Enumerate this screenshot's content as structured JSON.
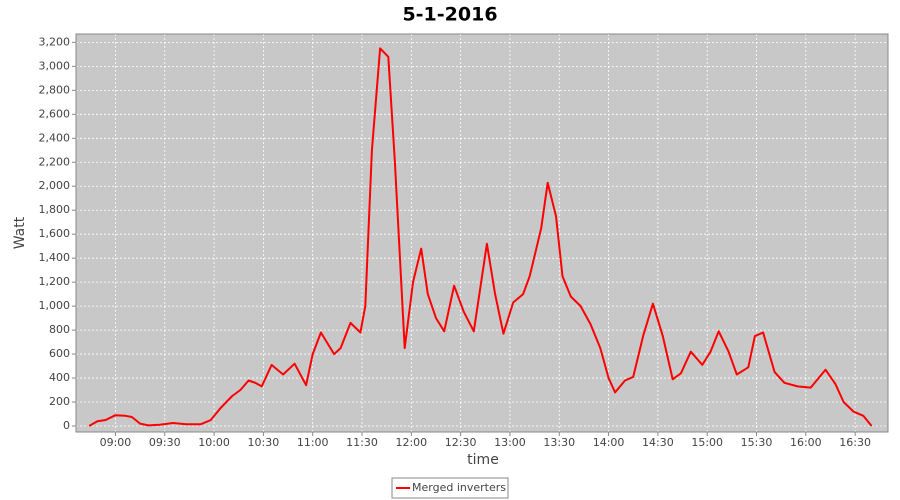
{
  "chart_data": {
    "type": "line",
    "title": "5-1-2016",
    "xlabel": "time",
    "ylabel": "Watt",
    "x": [
      "08:44",
      "08:49",
      "08:54",
      "09:00",
      "09:06",
      "09:10",
      "09:15",
      "09:20",
      "09:27",
      "09:35",
      "09:43",
      "09:52",
      "09:58",
      "10:04",
      "10:11",
      "10:16",
      "10:21",
      "10:25",
      "10:29",
      "10:35",
      "10:42",
      "10:49",
      "10:56",
      "11:00",
      "11:05",
      "11:13",
      "11:17",
      "11:23",
      "11:29",
      "11:32",
      "11:36",
      "11:41",
      "11:46",
      "11:50",
      "11:56",
      "12:01",
      "12:06",
      "12:10",
      "12:15",
      "12:20",
      "12:26",
      "12:32",
      "12:38",
      "12:46",
      "12:51",
      "12:56",
      "13:02",
      "13:08",
      "13:12",
      "13:19",
      "13:23",
      "13:28",
      "13:32",
      "13:37",
      "13:43",
      "13:49",
      "13:55",
      "14:00",
      "14:04",
      "14:10",
      "14:15",
      "14:21",
      "14:27",
      "14:33",
      "14:39",
      "14:44",
      "14:50",
      "14:57",
      "15:02",
      "15:07",
      "15:13",
      "15:18",
      "15:25",
      "15:29",
      "15:34",
      "15:41",
      "15:47",
      "15:55",
      "16:03",
      "16:12",
      "16:18",
      "16:23",
      "16:29",
      "16:35",
      "16:40"
    ],
    "series": [
      {
        "name": "Merged inverters",
        "color": "#ff0000",
        "values": [
          0,
          40,
          50,
          90,
          85,
          75,
          20,
          5,
          10,
          25,
          15,
          15,
          50,
          150,
          250,
          300,
          380,
          360,
          330,
          510,
          430,
          520,
          340,
          600,
          780,
          600,
          650,
          860,
          780,
          1000,
          2300,
          3150,
          3080,
          2200,
          650,
          1200,
          1480,
          1100,
          900,
          790,
          1170,
          950,
          790,
          1520,
          1100,
          770,
          1030,
          1100,
          1250,
          1650,
          2030,
          1750,
          1250,
          1080,
          1000,
          850,
          650,
          400,
          280,
          380,
          410,
          750,
          1020,
          750,
          390,
          440,
          620,
          510,
          620,
          790,
          620,
          430,
          490,
          750,
          780,
          450,
          360,
          330,
          320,
          470,
          350,
          200,
          120,
          85,
          0
        ]
      }
    ],
    "xlim": [
      "08:36",
      "16:50"
    ],
    "xticks": [
      "09:00",
      "09:30",
      "10:00",
      "10:30",
      "11:00",
      "11:30",
      "12:00",
      "12:30",
      "13:00",
      "13:30",
      "14:00",
      "14:30",
      "15:00",
      "15:30",
      "16:00",
      "16:30"
    ],
    "ylim": [
      -50,
      3270
    ],
    "yticks": [
      0,
      200,
      400,
      600,
      800,
      {
        "value": 1000,
        "label": "1,000"
      },
      {
        "value": 1200,
        "label": "1,200"
      },
      {
        "value": 1400,
        "label": "1,400"
      },
      {
        "value": 1600,
        "label": "1,600"
      },
      {
        "value": 1800,
        "label": "1,800"
      },
      {
        "value": 2000,
        "label": "2,000"
      },
      {
        "value": 2200,
        "label": "2,200"
      },
      {
        "value": 2400,
        "label": "2,400"
      },
      {
        "value": 2600,
        "label": "2,600"
      },
      {
        "value": 2800,
        "label": "2,800"
      },
      {
        "value": 3000,
        "label": "3,000"
      },
      {
        "value": 3200,
        "label": "3,200"
      }
    ],
    "grid": true
  }
}
